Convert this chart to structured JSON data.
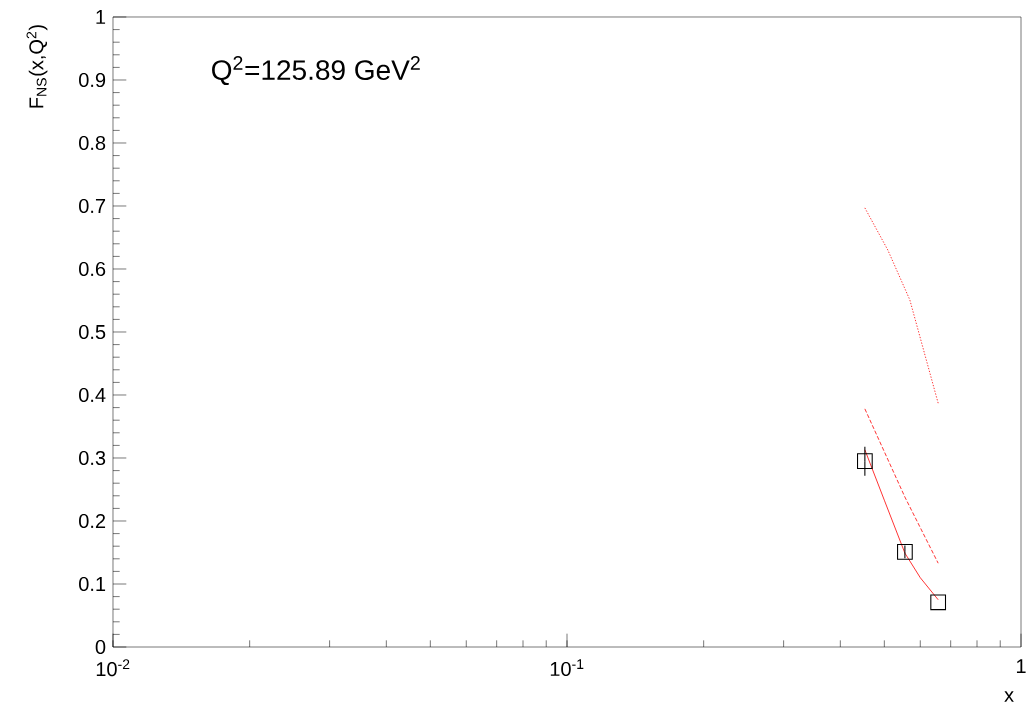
{
  "chart_data": {
    "type": "scatter",
    "xlabel": "x",
    "ylabel": "F$_{NS}$(x,Q$^{2}$)",
    "annotations": [
      "Q$^{2}$=125.89 GeV$^{2}$"
    ],
    "log": "x",
    "xlim": [
      0.01,
      1
    ],
    "ylim": [
      0,
      1
    ],
    "xticks": [
      {
        "value": 0.01,
        "label": "10$^{-2}$"
      },
      {
        "value": 0.1,
        "label": "10$^{-1}$"
      },
      1
    ],
    "yticks": [
      0,
      0.1,
      0.2,
      0.3,
      0.4,
      0.5,
      0.6,
      0.7,
      0.8,
      0.9,
      1
    ],
    "grid": false,
    "series": [
      {
        "color": "#000000",
        "marker": "square",
        "x": [
          0.453,
          0.555,
          0.657
        ],
        "values": [
          0.295,
          0.151,
          0.071
        ],
        "errors": [
          0.023,
          0.01,
          null
        ]
      },
      {
        "type": "line",
        "color": "#ff0000",
        "line_style": "solid",
        "x": [
          0.453,
          0.5,
          0.555,
          0.6,
          0.657
        ],
        "values": [
          0.313,
          0.233,
          0.149,
          0.11,
          0.075
        ]
      },
      {
        "type": "line",
        "color": "#ff0000",
        "line_style": "dashed",
        "x": [
          0.453,
          0.555,
          0.657
        ],
        "values": [
          0.378,
          0.238,
          0.133
        ]
      },
      {
        "type": "line",
        "color": "#ff0000",
        "line_style": "dotted",
        "x": [
          0.453,
          0.509,
          0.569,
          0.657
        ],
        "values": [
          0.697,
          0.63,
          0.551,
          0.387
        ]
      }
    ]
  }
}
